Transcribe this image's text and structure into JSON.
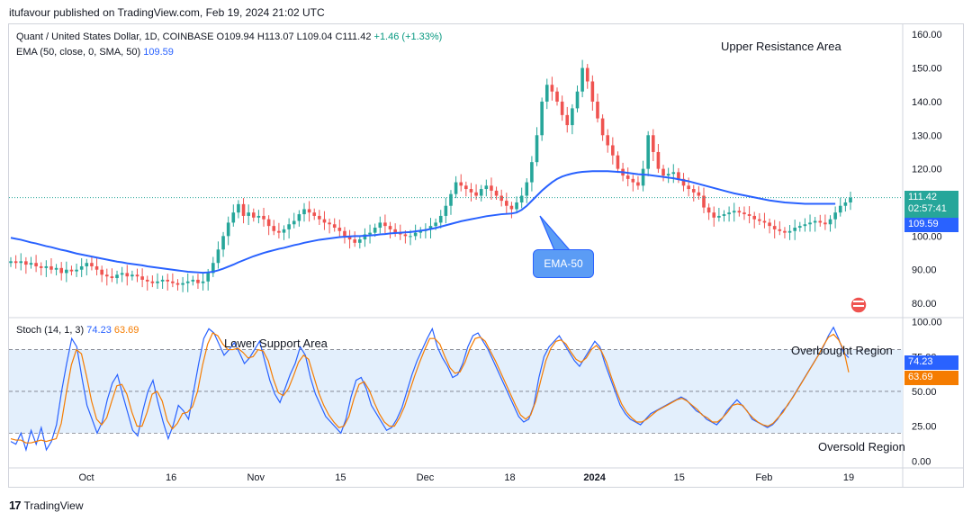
{
  "header": {
    "published": "itufavour published on TradingView.com, Feb 19, 2024 21:02 UTC"
  },
  "main_legend": {
    "symbol": "Quant / United States Dollar, 1D, COINBASE",
    "open": "O109.94",
    "high": "H113.07",
    "low": "L109.04",
    "close": "C111.42",
    "change": "+1.46 (+1.33%)",
    "ema_label": "EMA (50, close, 0, SMA, 50)",
    "ema_value": "109.59"
  },
  "stoch_legend": {
    "label": "Stoch (14, 1, 3)",
    "k": "74.23",
    "d": "63.69"
  },
  "annotations": {
    "upper_resistance": "Upper Resistance Area",
    "lower_support": "Lower Support Area",
    "overbought": "Overbought Region",
    "oversold": "Oversold Region",
    "ema_callout": "EMA-50"
  },
  "price_tags": {
    "last_price": "111.42",
    "countdown": "02:57:41",
    "ema": "109.59",
    "stoch_k": "74.23",
    "stoch_d": "63.69"
  },
  "footer": {
    "brand": "TradingView"
  },
  "colors": {
    "up": "#26a69a",
    "down": "#ef5350",
    "ema": "#2962ff",
    "stoch_k": "#2962ff",
    "stoch_d": "#f57c00",
    "band": "#e3effc"
  },
  "chart_data": [
    {
      "type": "candlestick",
      "title": "Quant / United States Dollar, 1D, COINBASE",
      "x_ticks": [
        "Oct",
        "16",
        "Nov",
        "15",
        "Dec",
        "18",
        "2024",
        "15",
        "Feb",
        "19"
      ],
      "y_ticks": [
        "160.00",
        "150.00",
        "140.00",
        "130.00",
        "120.00",
        "110.00",
        "100.00",
        "90.00",
        "80.00"
      ],
      "ylim": [
        76,
        163
      ],
      "close_series": [
        92.5,
        92.0,
        92.5,
        91.5,
        92.0,
        91.0,
        90.5,
        91.0,
        90.0,
        90.5,
        89.0,
        90.0,
        89.5,
        90.0,
        91.0,
        92.0,
        91.0,
        90.0,
        88.5,
        88.0,
        87.5,
        88.5,
        89.0,
        88.0,
        88.5,
        88.0,
        87.0,
        86.5,
        86.0,
        86.5,
        87.0,
        86.5,
        86.0,
        85.5,
        86.0,
        86.5,
        87.0,
        86.0,
        86.5,
        89.0,
        92.0,
        96.0,
        100.0,
        104.0,
        107.0,
        109.5,
        106.0,
        107.0,
        105.5,
        106.0,
        105.0,
        103.0,
        101.5,
        101.0,
        102.0,
        103.5,
        104.5,
        106.5,
        108.0,
        107.0,
        106.0,
        105.0,
        104.0,
        103.5,
        102.5,
        101.5,
        100.0,
        99.0,
        98.0,
        99.0,
        100.5,
        101.0,
        102.5,
        104.0,
        103.0,
        102.0,
        101.0,
        100.5,
        100.0,
        100.0,
        101.0,
        101.5,
        102.0,
        103.0,
        104.0,
        106.0,
        109.0,
        112.5,
        116.0,
        115.0,
        114.0,
        113.0,
        112.0,
        114.0,
        115.0,
        113.5,
        112.0,
        110.5,
        109.0,
        108.0,
        110.0,
        112.0,
        116.0,
        122.0,
        130.0,
        140.0,
        145.0,
        143.0,
        140.0,
        136.0,
        133.0,
        138.0,
        143.0,
        150.0,
        146.0,
        140.0,
        135.0,
        130.0,
        127.0,
        124.0,
        120.0,
        118.0,
        117.0,
        116.0,
        115.0,
        120.0,
        130.0,
        125.0,
        120.0,
        118.0,
        118.5,
        119.0,
        117.0,
        115.0,
        114.0,
        113.0,
        112.0,
        108.5,
        107.0,
        105.5,
        106.0,
        106.5,
        107.0,
        107.5,
        107.0,
        106.5,
        106.0,
        105.0,
        104.5,
        104.0,
        103.0,
        102.0,
        101.5,
        101.0,
        101.5,
        102.5,
        103.0,
        103.5,
        104.0,
        104.5,
        104.0,
        103.5,
        105.0,
        107.0,
        109.0,
        110.0,
        111.42
      ],
      "ema50_series": [
        99.5,
        99.2,
        98.9,
        98.5,
        98.1,
        97.8,
        97.4,
        97.0,
        96.7,
        96.3,
        95.9,
        95.6,
        95.2,
        94.8,
        94.5,
        94.2,
        93.9,
        93.6,
        93.3,
        93.0,
        92.7,
        92.4,
        92.2,
        91.9,
        91.7,
        91.5,
        91.3,
        91.0,
        90.8,
        90.6,
        90.4,
        90.2,
        90.0,
        89.8,
        89.6,
        89.4,
        89.3,
        89.2,
        89.1,
        89.2,
        89.4,
        89.8,
        90.3,
        90.9,
        91.5,
        92.2,
        92.8,
        93.4,
        94.0,
        94.5,
        95.0,
        95.4,
        95.8,
        96.2,
        96.5,
        96.9,
        97.3,
        97.6,
        98.0,
        98.3,
        98.6,
        98.9,
        99.1,
        99.3,
        99.5,
        99.7,
        99.8,
        99.9,
        100.0,
        100.0,
        100.1,
        100.2,
        100.3,
        100.5,
        100.6,
        100.8,
        100.9,
        101.0,
        101.1,
        101.2,
        101.4,
        101.6,
        101.8,
        102.1,
        102.4,
        102.8,
        103.2,
        103.6,
        104.0,
        104.4,
        104.7,
        105.0,
        105.3,
        105.6,
        105.9,
        106.1,
        106.3,
        106.5,
        106.6,
        106.7,
        107.0,
        107.8,
        109.0,
        110.5,
        112.0,
        113.5,
        114.8,
        116.0,
        117.0,
        117.7,
        118.2,
        118.6,
        118.9,
        119.1,
        119.2,
        119.3,
        119.3,
        119.3,
        119.3,
        119.2,
        119.1,
        119.0,
        118.8,
        118.6,
        118.4,
        118.3,
        118.2,
        118.0,
        117.8,
        117.6,
        117.4,
        117.2,
        116.9,
        116.6,
        116.3,
        115.9,
        115.5,
        115.1,
        114.7,
        114.3,
        113.9,
        113.5,
        113.1,
        112.7,
        112.4,
        112.1,
        111.8,
        111.5,
        111.2,
        110.9,
        110.6,
        110.4,
        110.2,
        110.0,
        109.9,
        109.8,
        109.7,
        109.6,
        109.6,
        109.6,
        109.6,
        109.59,
        109.59,
        109.59
      ]
    },
    {
      "type": "line",
      "title": "Stoch (14, 1, 3)",
      "y_ticks": [
        "100.00",
        "75.00",
        "50.00",
        "25.00",
        "0.00"
      ],
      "ylim": [
        -5,
        103
      ],
      "levels": [
        80,
        50,
        20
      ],
      "series": [
        {
          "name": "%K",
          "values": [
            14,
            12,
            20,
            8,
            22,
            12,
            24,
            8,
            14,
            26,
            50,
            70,
            88,
            82,
            60,
            40,
            30,
            20,
            28,
            44,
            56,
            62,
            48,
            35,
            22,
            18,
            36,
            50,
            58,
            42,
            28,
            16,
            26,
            40,
            36,
            30,
            50,
            70,
            88,
            95,
            92,
            84,
            76,
            80,
            85,
            78,
            70,
            74,
            80,
            86,
            72,
            58,
            48,
            42,
            52,
            62,
            70,
            82,
            76,
            60,
            48,
            40,
            32,
            28,
            24,
            20,
            30,
            46,
            58,
            60,
            52,
            40,
            34,
            28,
            22,
            24,
            30,
            38,
            50,
            62,
            72,
            80,
            88,
            95,
            82,
            74,
            68,
            60,
            62,
            70,
            82,
            90,
            92,
            86,
            80,
            72,
            64,
            56,
            48,
            40,
            32,
            28,
            30,
            40,
            60,
            75,
            82,
            86,
            90,
            84,
            78,
            72,
            68,
            74,
            80,
            86,
            82,
            70,
            60,
            50,
            40,
            34,
            30,
            28,
            26,
            30,
            34,
            36,
            38,
            40,
            42,
            44,
            46,
            44,
            40,
            36,
            34,
            30,
            28,
            26,
            30,
            36,
            40,
            44,
            40,
            36,
            30,
            28,
            26,
            24,
            26,
            30,
            36,
            40,
            46,
            52,
            58,
            64,
            70,
            76,
            82,
            90,
            96,
            88,
            78,
            74.23
          ]
        },
        {
          "name": "%D",
          "values": [
            16,
            15,
            15,
            13,
            13,
            14,
            15,
            14,
            15,
            16,
            27,
            49,
            69,
            80,
            77,
            61,
            43,
            30,
            26,
            31,
            43,
            54,
            55,
            48,
            35,
            25,
            25,
            35,
            48,
            50,
            43,
            29,
            23,
            27,
            34,
            35,
            39,
            50,
            69,
            84,
            92,
            90,
            84,
            80,
            80,
            81,
            78,
            74,
            75,
            80,
            79,
            72,
            59,
            49,
            47,
            52,
            61,
            71,
            76,
            73,
            61,
            49,
            40,
            33,
            28,
            24,
            25,
            32,
            45,
            55,
            57,
            51,
            42,
            34,
            28,
            25,
            25,
            31,
            39,
            50,
            61,
            71,
            80,
            88,
            88,
            84,
            75,
            67,
            63,
            64,
            71,
            81,
            88,
            89,
            86,
            79,
            72,
            64,
            56,
            48,
            40,
            33,
            30,
            33,
            43,
            58,
            72,
            81,
            86,
            87,
            84,
            78,
            73,
            71,
            74,
            80,
            83,
            79,
            71,
            60,
            50,
            41,
            35,
            31,
            28,
            28,
            30,
            33,
            36,
            38,
            40,
            42,
            44,
            45,
            43,
            40,
            37,
            33,
            31,
            28,
            28,
            31,
            35,
            40,
            41,
            40,
            35,
            31,
            28,
            26,
            25,
            27,
            31,
            35,
            41,
            46,
            52,
            58,
            64,
            70,
            76,
            83,
            89,
            91,
            87,
            80,
            63.69
          ]
        }
      ]
    }
  ]
}
